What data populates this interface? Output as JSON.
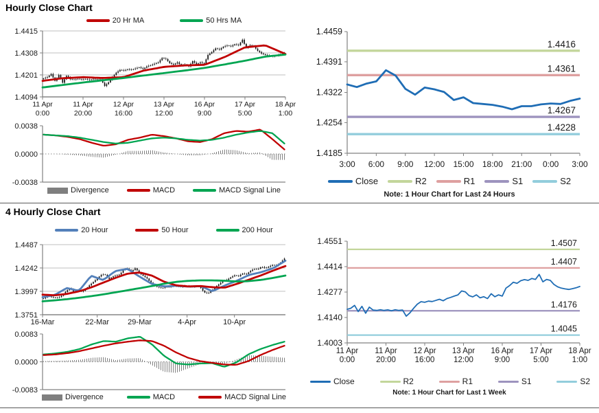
{
  "sections": [
    {
      "title": "Hourly Close Chart"
    },
    {
      "title": "4 Hourly Close Chart"
    }
  ],
  "chart_data": [
    {
      "id": "hourly-price",
      "type": "candlestick",
      "ylim": [
        1.4094,
        1.4415
      ],
      "yticks": [
        "1.4415",
        "1.4308",
        "1.4201",
        "1.4094"
      ],
      "xticks": [
        [
          "11 Apr",
          "0:00"
        ],
        [
          "11 Apr",
          "20:00"
        ],
        [
          "12 Apr",
          "16:00"
        ],
        [
          "13 Apr",
          "12:00"
        ],
        [
          "16 Apr",
          "9:00"
        ],
        [
          "17 Apr",
          "5:00"
        ],
        [
          "18 Apr",
          "1:00"
        ]
      ],
      "close": [
        1.4184,
        1.419,
        1.4205,
        1.4172,
        1.42,
        1.4163,
        1.4196,
        1.418,
        1.4178,
        1.4182,
        1.4178,
        1.4181,
        1.4176,
        1.4182,
        1.4178,
        1.418,
        1.4147,
        1.4165,
        1.419,
        1.4212,
        1.4225,
        1.4222,
        1.4228,
        1.4226,
        1.4232,
        1.4238,
        1.423,
        1.4242,
        1.4248,
        1.4255,
        1.4262,
        1.4283,
        1.4278,
        1.4258,
        1.4251,
        1.4262,
        1.4246,
        1.4252,
        1.4242,
        1.4268,
        1.4252,
        1.4262,
        1.4255,
        1.4298,
        1.4312,
        1.433,
        1.4324,
        1.4338,
        1.4344,
        1.434,
        1.435,
        1.4345,
        1.4372,
        1.4332,
        1.4345,
        1.434,
        1.4318,
        1.4305,
        1.4298,
        1.4294,
        1.4291,
        1.4295,
        1.43,
        1.4307
      ],
      "series": [
        {
          "name": "20 Hr MA",
          "color": "#C00000",
          "values": [
            1.4172,
            1.4185,
            1.419,
            1.4186,
            1.419,
            1.4222,
            1.424,
            1.4247,
            1.425,
            1.4288,
            1.4335,
            1.4345,
            1.4303
          ]
        },
        {
          "name": "50 Hrs MA",
          "color": "#00A551",
          "values": [
            1.414,
            1.4152,
            1.4164,
            1.4175,
            1.4186,
            1.4198,
            1.421,
            1.4222,
            1.4235,
            1.4252,
            1.427,
            1.429,
            1.43
          ]
        }
      ],
      "legend": [
        {
          "label": "20 Hr MA",
          "color": "#C00000"
        },
        {
          "label": "50 Hrs MA",
          "color": "#00A551"
        }
      ]
    },
    {
      "id": "hourly-macd",
      "type": "macd",
      "ylim": [
        -0.0038,
        0.0038
      ],
      "yticks": [
        "0.0038",
        "0.0000",
        "-0.0038"
      ],
      "macd": {
        "name": "MACD",
        "color": "#C00000",
        "values": [
          0.0026,
          0.0025,
          0.0023,
          0.002,
          0.0015,
          0.0011,
          0.0013,
          0.0019,
          0.0022,
          0.0026,
          0.0024,
          0.0021,
          0.0017,
          0.0016,
          0.002,
          0.0028,
          0.0031,
          0.003,
          0.0033,
          0.002,
          0.0006
        ]
      },
      "signal": {
        "name": "MACD Signal Line",
        "color": "#00A551",
        "values": [
          0.0026,
          0.0025,
          0.0024,
          0.0022,
          0.0019,
          0.0016,
          0.0014,
          0.0015,
          0.0018,
          0.0021,
          0.0022,
          0.0021,
          0.0019,
          0.0018,
          0.0019,
          0.0022,
          0.0026,
          0.0029,
          0.0031,
          0.0028,
          0.0014
        ]
      },
      "legend": [
        {
          "label": "Divergence",
          "color": "#7F7F7F",
          "shape": "block"
        },
        {
          "label": "MACD",
          "color": "#C00000"
        },
        {
          "label": "MACD Signal Line",
          "color": "#00A551"
        }
      ]
    },
    {
      "id": "pivot-24h",
      "type": "line",
      "ylim": [
        1.4185,
        1.4459
      ],
      "yticks": [
        "1.4459",
        "1.4391",
        "1.4322",
        "1.4254",
        "1.4185"
      ],
      "xticks": [
        "3:00",
        "6:00",
        "9:00",
        "12:00",
        "15:00",
        "18:00",
        "21:00",
        "0:00",
        "3:00"
      ],
      "close": {
        "name": "Close",
        "color": "#1F6DB5",
        "values": [
          1.434,
          1.4334,
          1.4342,
          1.4347,
          1.4372,
          1.436,
          1.433,
          1.4317,
          1.4333,
          1.4329,
          1.4323,
          1.4305,
          1.4311,
          1.4298,
          1.4296,
          1.4294,
          1.429,
          1.4284,
          1.4291,
          1.4291,
          1.4295,
          1.4297,
          1.4296,
          1.4303,
          1.4308
        ]
      },
      "pivots": [
        {
          "name": "R2",
          "value": 1.4416,
          "label": "1.4416",
          "color": "#C3D69B"
        },
        {
          "name": "R1",
          "value": 1.4361,
          "label": "1.4361",
          "color": "#DEA0A0"
        },
        {
          "name": "S1",
          "value": 1.4267,
          "label": "1.4267",
          "color": "#9D93BE"
        },
        {
          "name": "S2",
          "value": 1.4228,
          "label": "1.4228",
          "color": "#92CDDC"
        }
      ],
      "legend": [
        {
          "label": "Close",
          "color": "#1F6DB5"
        },
        {
          "label": "R2",
          "color": "#C3D69B"
        },
        {
          "label": "R1",
          "color": "#DEA0A0"
        },
        {
          "label": "S1",
          "color": "#9D93BE"
        },
        {
          "label": "S2",
          "color": "#92CDDC"
        }
      ],
      "note": "Note: 1 Hour Chart for Last 24 Hours"
    },
    {
      "id": "four-hourly-price",
      "type": "candlestick",
      "ylim": [
        1.3751,
        1.4487
      ],
      "yticks": [
        "1.4487",
        "1.4242",
        "1.3997",
        "1.3751"
      ],
      "xticks": [
        "16-Mar",
        "22-Mar",
        "29-Mar",
        "4-Apr",
        "10-Apr"
      ],
      "xtick_pos": [
        0,
        0.225,
        0.4,
        0.595,
        0.79
      ],
      "close": [
        1.3922,
        1.3945,
        1.3938,
        1.3928,
        1.3932,
        1.3958,
        1.4002,
        1.4032,
        1.3988,
        1.401,
        1.3992,
        1.402,
        1.406,
        1.4095,
        1.413,
        1.4168,
        1.4178,
        1.412,
        1.415,
        1.4165,
        1.4175,
        1.423,
        1.4235,
        1.4205,
        1.424,
        1.419,
        1.416,
        1.4135,
        1.409,
        1.4055,
        1.404,
        1.4028,
        1.4045,
        1.404,
        1.4058,
        1.405,
        1.4042,
        1.4055,
        1.4048,
        1.404,
        1.4052,
        1.4038,
        1.3985,
        1.3975,
        1.4005,
        1.4045,
        1.4075,
        1.4108,
        1.4118,
        1.4145,
        1.4165,
        1.4155,
        1.4185,
        1.4175,
        1.4208,
        1.4232,
        1.4228,
        1.4255,
        1.424,
        1.4258,
        1.4275,
        1.4265,
        1.43,
        1.434
      ],
      "series": [
        {
          "name": "20 Hour",
          "color": "#5380BA",
          "values": [
            1.3935,
            1.3958,
            1.4032,
            1.4002,
            1.416,
            1.4115,
            1.421,
            1.4232,
            1.415,
            1.4075,
            1.4048,
            1.4055,
            1.4046,
            1.4052,
            1.3998,
            1.4058,
            1.4108,
            1.4168,
            1.4198,
            1.424,
            1.4318
          ]
        },
        {
          "name": "50 Hour",
          "color": "#C00000",
          "values": [
            1.3962,
            1.3955,
            1.397,
            1.3996,
            1.4038,
            1.4088,
            1.4138,
            1.4182,
            1.4195,
            1.4162,
            1.4098,
            1.406,
            1.4048,
            1.4052,
            1.404,
            1.4035,
            1.4075,
            1.412,
            1.4165,
            1.4215,
            1.4262
          ]
        },
        {
          "name": "200 Hour",
          "color": "#00A551",
          "values": [
            1.3892,
            1.3902,
            1.3914,
            1.3929,
            1.3946,
            1.3965,
            1.3986,
            1.4008,
            1.403,
            1.4052,
            1.4076,
            1.4096,
            1.4107,
            1.4112,
            1.4112,
            1.4108,
            1.41,
            1.4104,
            1.4117,
            1.4138,
            1.4162
          ]
        }
      ],
      "legend": [
        {
          "label": "20 Hour",
          "color": "#5380BA"
        },
        {
          "label": "50 Hour",
          "color": "#C00000"
        },
        {
          "label": "200 Hour",
          "color": "#00A551"
        }
      ]
    },
    {
      "id": "four-hourly-macd",
      "type": "macd",
      "ylim": [
        -0.0083,
        0.0083
      ],
      "yticks": [
        "0.0083",
        "0.0000",
        "-0.0083"
      ],
      "macd": {
        "name": "MACD",
        "color": "#00A551",
        "values": [
          0.0022,
          0.0025,
          0.003,
          0.0038,
          0.0052,
          0.0062,
          0.006,
          0.007,
          0.0075,
          0.0052,
          0.0018,
          -0.0005,
          -0.0008,
          -0.0005,
          -0.0004,
          -0.0015,
          -0.0002,
          0.0022,
          0.0038,
          0.005,
          0.006
        ]
      },
      "signal": {
        "name": "MACD Signal Line",
        "color": "#C00000",
        "values": [
          0.002,
          0.0022,
          0.0026,
          0.0032,
          0.004,
          0.0048,
          0.0055,
          0.006,
          0.0064,
          0.0062,
          0.0048,
          0.0028,
          0.0012,
          0.0002,
          -0.0003,
          -0.0008,
          -0.0009,
          0.0002,
          0.002,
          0.0035,
          0.0048
        ]
      },
      "legend": [
        {
          "label": "Divergence",
          "color": "#7F7F7F",
          "shape": "block"
        },
        {
          "label": "MACD",
          "color": "#00A551"
        },
        {
          "label": "MACD Signal Line",
          "color": "#C00000"
        }
      ]
    },
    {
      "id": "pivot-1week",
      "type": "line",
      "ylim": [
        1.4003,
        1.4551
      ],
      "yticks": [
        "1.4551",
        "1.4414",
        "1.4277",
        "1.4140",
        "1.4003"
      ],
      "xticks": [
        [
          "11 Apr",
          "0:00"
        ],
        [
          "11 Apr",
          "20:00"
        ],
        [
          "12 Apr",
          "16:00"
        ],
        [
          "13 Apr",
          "12:00"
        ],
        [
          "16 Apr",
          "9:00"
        ],
        [
          "17 Apr",
          "5:00"
        ],
        [
          "18 Apr",
          "1:00"
        ]
      ],
      "close": {
        "name": "Close",
        "color": "#1F6DB5",
        "values": [
          1.4184,
          1.419,
          1.4205,
          1.4172,
          1.42,
          1.4163,
          1.4196,
          1.418,
          1.4178,
          1.4182,
          1.4178,
          1.4181,
          1.4176,
          1.4182,
          1.4178,
          1.418,
          1.4147,
          1.4165,
          1.419,
          1.4212,
          1.4225,
          1.4222,
          1.4228,
          1.4226,
          1.4232,
          1.4238,
          1.423,
          1.4242,
          1.4248,
          1.4255,
          1.4262,
          1.4283,
          1.4278,
          1.4258,
          1.4251,
          1.4262,
          1.4246,
          1.4252,
          1.4242,
          1.4268,
          1.4252,
          1.4262,
          1.4255,
          1.4298,
          1.4312,
          1.433,
          1.4324,
          1.4338,
          1.4344,
          1.434,
          1.435,
          1.4345,
          1.4372,
          1.4332,
          1.4345,
          1.434,
          1.4318,
          1.4305,
          1.4298,
          1.4294,
          1.4291,
          1.4295,
          1.43,
          1.4307
        ]
      },
      "pivots": [
        {
          "name": "R2",
          "value": 1.4507,
          "label": "1.4507",
          "color": "#C3D69B"
        },
        {
          "name": "R1",
          "value": 1.4407,
          "label": "1.4407",
          "color": "#DEA0A0"
        },
        {
          "name": "S1",
          "value": 1.4176,
          "label": "1.4176",
          "color": "#9D93BE"
        },
        {
          "name": "S2",
          "value": 1.4045,
          "label": "1.4045",
          "color": "#92CDDC"
        }
      ],
      "legend": [
        {
          "label": "Close",
          "color": "#1F6DB5"
        },
        {
          "label": "R2",
          "color": "#C3D69B"
        },
        {
          "label": "R1",
          "color": "#DEA0A0"
        },
        {
          "label": "S1",
          "color": "#9D93BE"
        },
        {
          "label": "S2",
          "color": "#92CDDC"
        }
      ],
      "note": "Note: 1 Hour Chart for Last 1 Week"
    }
  ]
}
